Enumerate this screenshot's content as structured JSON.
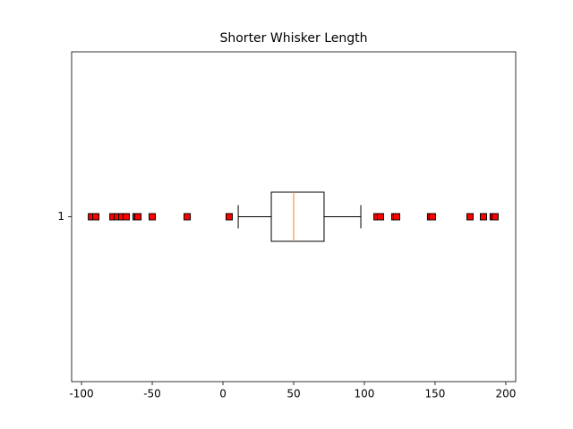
{
  "chart_data": {
    "type": "boxplot",
    "title": "Shorter Whisker Length",
    "categories": [
      "1"
    ],
    "boxes": [
      {
        "whislo": 10.8,
        "q1": 34.2,
        "med": 50,
        "q3": 71.5,
        "whishi": 97.5,
        "fliers": [
          -93.0,
          -89.9,
          -77.8,
          -74.7,
          -71.5,
          -68.4,
          -61.4,
          -60.1,
          -50.0,
          -25.3,
          4.4,
          108.9,
          111.4,
          121.5,
          122.8,
          146.8,
          148.1,
          174.7,
          184.2,
          191.1,
          192.4
        ]
      }
    ],
    "box_color": "#000000",
    "median_color": "#ff7f0e",
    "flier_color": "#ff0000",
    "flier_edge_color": "#000000",
    "xlim": [
      -107,
      207
    ],
    "xticks": [
      -100,
      -50,
      0,
      50,
      100,
      150,
      200
    ]
  }
}
